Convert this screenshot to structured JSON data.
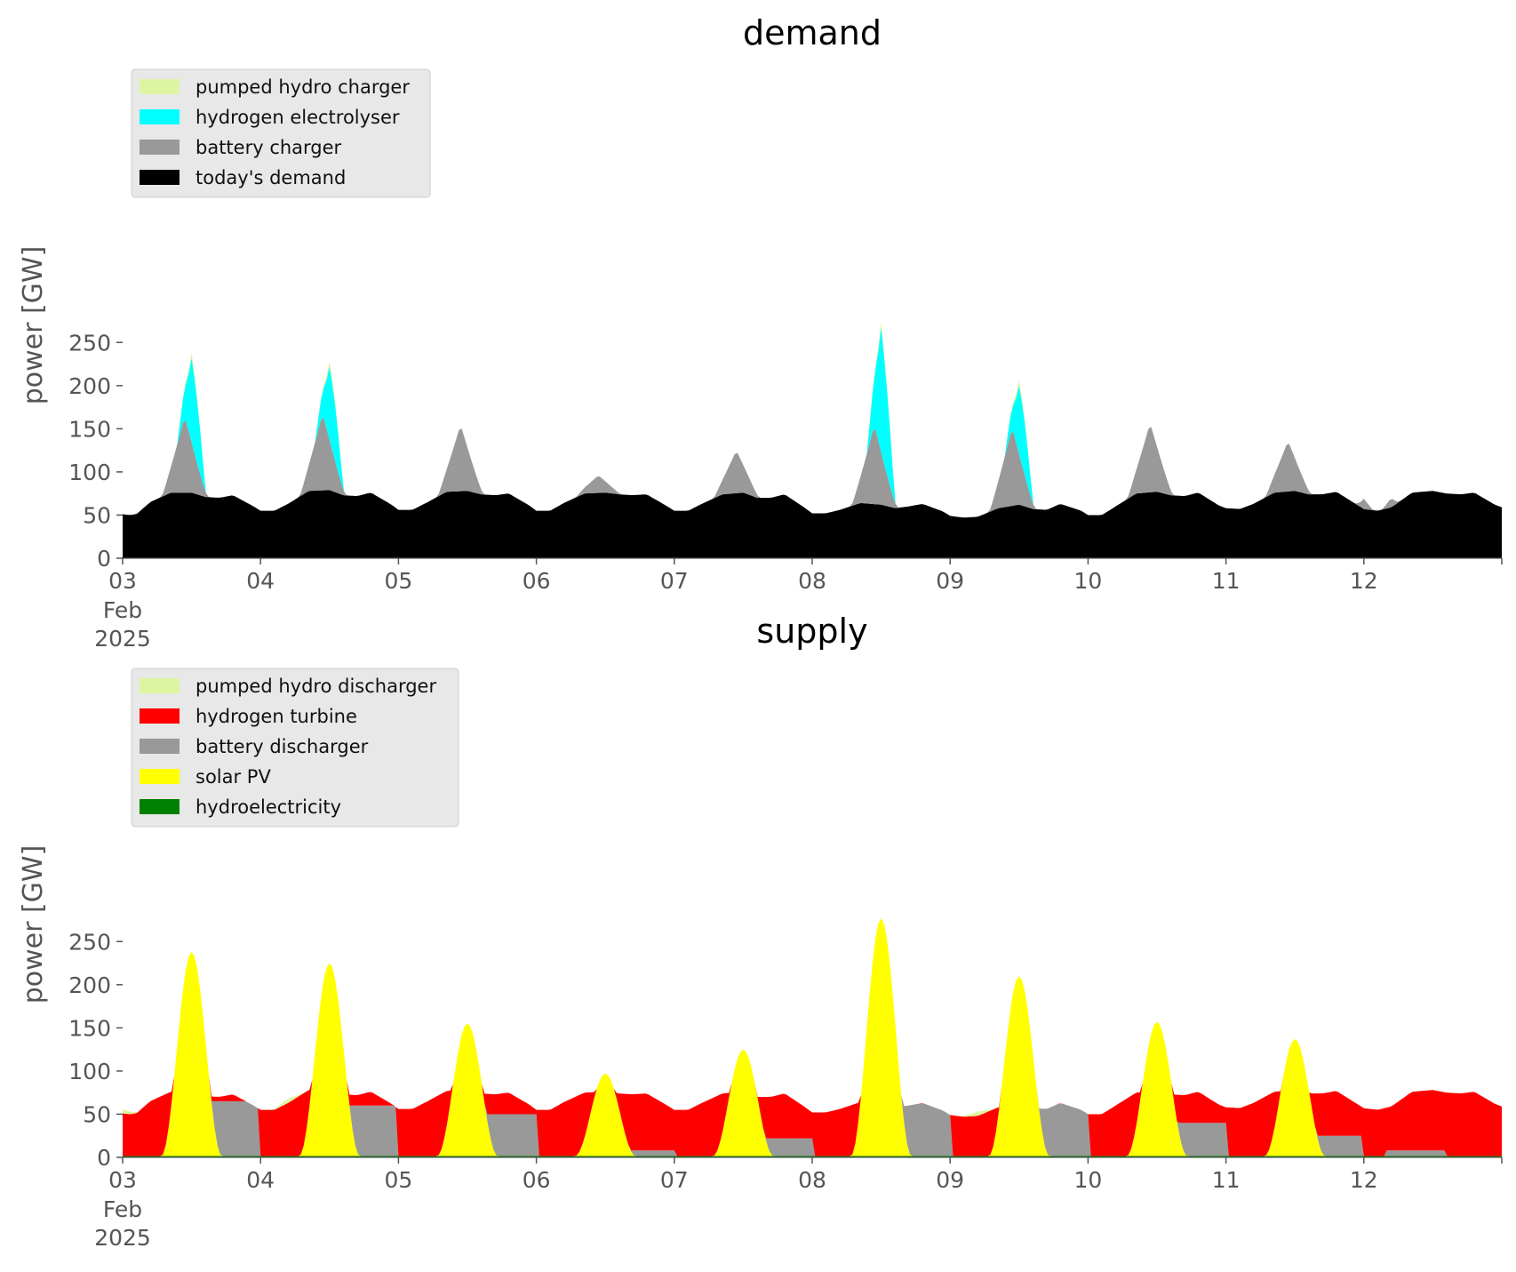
{
  "chart_data": [
    {
      "type": "area",
      "stacked": true,
      "title": "demand",
      "ylabel": "power [GW]",
      "xlabel": "",
      "ylim": [
        0,
        280
      ],
      "yticks": [
        0,
        50,
        100,
        150,
        200,
        250
      ],
      "xlim": [
        0,
        10
      ],
      "xticks": [
        {
          "x": 0,
          "label": "03",
          "sub1": "Feb",
          "sub2": "2025"
        },
        {
          "x": 1,
          "label": "04"
        },
        {
          "x": 2,
          "label": "05"
        },
        {
          "x": 3,
          "label": "06"
        },
        {
          "x": 4,
          "label": "07"
        },
        {
          "x": 5,
          "label": "08"
        },
        {
          "x": 6,
          "label": "09"
        },
        {
          "x": 7,
          "label": "10"
        },
        {
          "x": 8,
          "label": "11"
        },
        {
          "x": 9,
          "label": "12"
        }
      ],
      "grid": false,
      "legend_position": "upper-left",
      "legend": [
        {
          "label": "pumped hydro charger",
          "color": "#ddf5a0"
        },
        {
          "label": "hydrogen electrolyser",
          "color": "#00ffff"
        },
        {
          "label": "battery charger",
          "color": "#999999"
        },
        {
          "label": "today's demand",
          "color": "#000000"
        }
      ],
      "day_offset": 2,
      "x_unit": "days since 03 Feb 2025",
      "series": [
        {
          "name": "today's demand",
          "color": "#000000",
          "profile": {
            "night": 50,
            "morning": 75,
            "evening": 72
          },
          "points": [
            [
              0,
              51
            ],
            [
              0.05,
              50
            ],
            [
              0.1,
              51
            ],
            [
              0.2,
              65
            ],
            [
              0.35,
              76
            ],
            [
              0.5,
              76
            ],
            [
              0.6,
              71
            ],
            [
              0.7,
              70
            ],
            [
              0.8,
              73
            ],
            [
              0.95,
              60
            ],
            [
              1.0,
              55
            ],
            [
              1.1,
              55
            ],
            [
              1.2,
              63
            ],
            [
              1.35,
              78
            ],
            [
              1.5,
              79
            ],
            [
              1.6,
              73
            ],
            [
              1.7,
              72
            ],
            [
              1.8,
              76
            ],
            [
              1.95,
              62
            ],
            [
              2.0,
              56
            ],
            [
              2.1,
              56
            ],
            [
              2.2,
              64
            ],
            [
              2.35,
              77
            ],
            [
              2.5,
              78
            ],
            [
              2.6,
              74
            ],
            [
              2.7,
              73
            ],
            [
              2.8,
              75
            ],
            [
              2.95,
              61
            ],
            [
              3.0,
              55
            ],
            [
              3.1,
              55
            ],
            [
              3.2,
              64
            ],
            [
              3.35,
              75
            ],
            [
              3.5,
              76
            ],
            [
              3.6,
              74
            ],
            [
              3.7,
              73
            ],
            [
              3.8,
              74
            ],
            [
              3.95,
              60
            ],
            [
              4.0,
              55
            ],
            [
              4.1,
              55
            ],
            [
              4.2,
              63
            ],
            [
              4.35,
              74
            ],
            [
              4.5,
              76
            ],
            [
              4.6,
              70
            ],
            [
              4.7,
              70
            ],
            [
              4.8,
              74
            ],
            [
              4.95,
              58
            ],
            [
              5.0,
              52
            ],
            [
              5.1,
              52
            ],
            [
              5.2,
              56
            ],
            [
              5.35,
              64
            ],
            [
              5.5,
              62
            ],
            [
              5.6,
              58
            ],
            [
              5.7,
              60
            ],
            [
              5.8,
              63
            ],
            [
              5.95,
              54
            ],
            [
              6.0,
              49
            ],
            [
              6.1,
              47
            ],
            [
              6.2,
              48
            ],
            [
              6.35,
              58
            ],
            [
              6.5,
              62
            ],
            [
              6.6,
              57
            ],
            [
              6.7,
              56
            ],
            [
              6.8,
              63
            ],
            [
              6.95,
              55
            ],
            [
              7.0,
              50
            ],
            [
              7.1,
              50
            ],
            [
              7.2,
              60
            ],
            [
              7.35,
              75
            ],
            [
              7.5,
              77
            ],
            [
              7.6,
              73
            ],
            [
              7.7,
              72
            ],
            [
              7.8,
              76
            ],
            [
              7.95,
              61
            ],
            [
              8.0,
              58
            ],
            [
              8.1,
              57
            ],
            [
              8.2,
              63
            ],
            [
              8.35,
              76
            ],
            [
              8.5,
              78
            ],
            [
              8.6,
              74
            ],
            [
              8.7,
              74
            ],
            [
              8.8,
              77
            ],
            [
              8.95,
              62
            ],
            [
              9.0,
              57
            ],
            [
              9.1,
              55
            ],
            [
              9.2,
              59
            ],
            [
              9.35,
              76
            ],
            [
              9.5,
              78
            ],
            [
              9.6,
              75
            ],
            [
              9.7,
              74
            ],
            [
              9.8,
              76
            ],
            [
              9.95,
              62
            ],
            [
              10.0,
              59
            ]
          ]
        },
        {
          "name": "battery charger",
          "color": "#999999",
          "peaks": [
            [
              0.45,
              165
            ],
            [
              1.45,
              168
            ],
            [
              2.45,
              155
            ],
            [
              3.45,
              96
            ],
            [
              4.45,
              125
            ],
            [
              5.45,
              155
            ],
            [
              6.45,
              152
            ],
            [
              7.45,
              157
            ],
            [
              8.45,
              136
            ],
            [
              9.0,
              69
            ],
            [
              9.2,
              70
            ]
          ]
        },
        {
          "name": "hydrogen electrolyser",
          "color": "#00ffff",
          "peaks": [
            [
              0.5,
              232
            ],
            [
              1.5,
              222
            ],
            [
              5.5,
              268
            ],
            [
              6.5,
              200
            ]
          ]
        },
        {
          "name": "pumped hydro charger",
          "color": "#ddf5a0",
          "peaks": [
            [
              0.5,
              238
            ],
            [
              1.5,
              228
            ],
            [
              5.5,
              277
            ],
            [
              6.5,
              208
            ]
          ]
        }
      ]
    },
    {
      "type": "area",
      "stacked": true,
      "title": "supply",
      "ylabel": "power [GW]",
      "xlabel": "",
      "ylim": [
        0,
        280
      ],
      "yticks": [
        0,
        50,
        100,
        150,
        200,
        250
      ],
      "xlim": [
        0,
        10
      ],
      "xticks": [
        {
          "x": 0,
          "label": "03",
          "sub1": "Feb",
          "sub2": "2025"
        },
        {
          "x": 1,
          "label": "04"
        },
        {
          "x": 2,
          "label": "05"
        },
        {
          "x": 3,
          "label": "06"
        },
        {
          "x": 4,
          "label": "07"
        },
        {
          "x": 5,
          "label": "08"
        },
        {
          "x": 6,
          "label": "09"
        },
        {
          "x": 7,
          "label": "10"
        },
        {
          "x": 8,
          "label": "11"
        },
        {
          "x": 9,
          "label": "12"
        }
      ],
      "grid": false,
      "legend_position": "upper-left",
      "legend": [
        {
          "label": "pumped hydro discharger",
          "color": "#ddf5a0"
        },
        {
          "label": "hydrogen turbine",
          "color": "#ff0000"
        },
        {
          "label": "battery discharger",
          "color": "#999999"
        },
        {
          "label": "solar PV",
          "color": "#ffff00"
        },
        {
          "label": "hydroelectricity",
          "color": "#008000"
        }
      ],
      "series": [
        {
          "name": "hydroelectricity",
          "color": "#008000",
          "value_approx": 1
        },
        {
          "name": "solar PV",
          "color": "#ffff00",
          "peaks": [
            [
              0.5,
              238
            ],
            [
              1.5,
              225
            ],
            [
              2.5,
              155
            ],
            [
              3.5,
              97
            ],
            [
              4.5,
              125
            ],
            [
              5.5,
              277
            ],
            [
              6.5,
              210
            ],
            [
              7.5,
              157
            ],
            [
              8.5,
              137
            ]
          ]
        },
        {
          "name": "battery discharger",
          "color": "#999999",
          "segments": [
            [
              0.7,
              65
            ],
            [
              1.7,
              60
            ],
            [
              2.7,
              50
            ],
            [
              3.7,
              8
            ],
            [
              4.7,
              22
            ],
            [
              5.7,
              62
            ],
            [
              6.7,
              62
            ],
            [
              7.7,
              40
            ],
            [
              8.7,
              25
            ],
            [
              9.3,
              8
            ]
          ]
        },
        {
          "name": "hydrogen turbine",
          "color": "#ff0000",
          "fills_to": "today's demand"
        },
        {
          "name": "pumped hydro discharger",
          "color": "#ddf5a0",
          "bumps": [
            [
              0.0,
              52
            ],
            [
              1.2,
              56
            ],
            [
              6.2,
              50
            ]
          ]
        }
      ]
    }
  ]
}
